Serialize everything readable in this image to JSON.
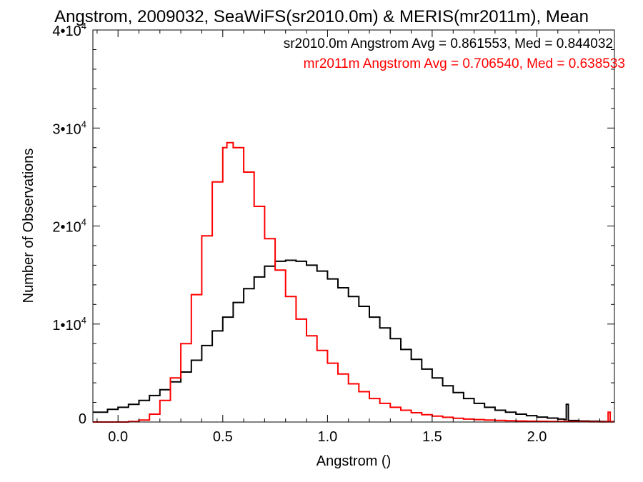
{
  "chart_data": {
    "type": "line",
    "title": "Angstrom, 2009032, SeaWiFS(sr2010.0m) & MERIS(mr2011m), Mean",
    "xlabel": "Angstrom ()",
    "ylabel": "Number of Observations",
    "xlim": [
      -0.12,
      2.37
    ],
    "ylim": [
      0,
      40000
    ],
    "x_ticks": [
      0.0,
      0.5,
      1.0,
      1.5,
      2.0
    ],
    "x_tick_labels": [
      "0.0",
      "0.5",
      "1.0",
      "1.5",
      "2.0"
    ],
    "y_ticks": [
      0,
      10000,
      20000,
      30000,
      40000
    ],
    "y_tick_labels": [
      {
        "mantissa": "0",
        "exponent": ""
      },
      {
        "mantissa": "1•10",
        "exponent": "4"
      },
      {
        "mantissa": "2•10",
        "exponent": "4"
      },
      {
        "mantissa": "3•10",
        "exponent": "4"
      },
      {
        "mantissa": "4•10",
        "exponent": "4"
      }
    ],
    "grid": false,
    "legend_location": "top-right",
    "series": [
      {
        "name": "sr2010.0m",
        "stats_label": "sr2010.0m Angstrom Avg = 0.861553, Med = 0.844032",
        "color": "#000000",
        "x": [
          -0.12,
          -0.05,
          0.0,
          0.05,
          0.1,
          0.15,
          0.2,
          0.25,
          0.3,
          0.35,
          0.4,
          0.45,
          0.5,
          0.55,
          0.6,
          0.65,
          0.7,
          0.75,
          0.8,
          0.85,
          0.9,
          0.95,
          1.0,
          1.05,
          1.1,
          1.15,
          1.2,
          1.25,
          1.3,
          1.35,
          1.4,
          1.45,
          1.5,
          1.55,
          1.6,
          1.65,
          1.7,
          1.75,
          1.8,
          1.85,
          1.9,
          1.95,
          2.0,
          2.05,
          2.1,
          2.13,
          2.14,
          2.15,
          2.2,
          2.25,
          2.3,
          2.33
        ],
        "y": [
          1000,
          1300,
          1500,
          1800,
          2200,
          2700,
          3300,
          4100,
          5100,
          6300,
          7800,
          9300,
          10700,
          12200,
          13600,
          14800,
          15900,
          16400,
          16500,
          16400,
          16000,
          15400,
          14600,
          13700,
          12800,
          11800,
          10700,
          9600,
          8500,
          7400,
          6400,
          5400,
          4500,
          3700,
          3000,
          2400,
          1900,
          1500,
          1200,
          1000,
          800,
          650,
          500,
          400,
          300,
          250,
          1800,
          150,
          100,
          80,
          50,
          40
        ]
      },
      {
        "name": "mr2011m",
        "stats_label": "mr2011m Angstrom Avg = 0.706540, Med = 0.638533",
        "color": "#ff0000",
        "x": [
          -0.12,
          0.0,
          0.05,
          0.1,
          0.15,
          0.2,
          0.25,
          0.3,
          0.35,
          0.4,
          0.45,
          0.5,
          0.52,
          0.55,
          0.6,
          0.65,
          0.7,
          0.75,
          0.8,
          0.85,
          0.9,
          0.95,
          1.0,
          1.05,
          1.1,
          1.15,
          1.2,
          1.25,
          1.3,
          1.35,
          1.4,
          1.45,
          1.5,
          1.55,
          1.6,
          1.65,
          1.7,
          1.75,
          1.8,
          1.85,
          1.9,
          1.95,
          2.0,
          2.05,
          2.1,
          2.15,
          2.2,
          2.25,
          2.3,
          2.33,
          2.34,
          2.35
        ],
        "y": [
          0,
          0,
          50,
          200,
          800,
          2200,
          4500,
          8000,
          13000,
          19000,
          24500,
          28000,
          28500,
          28000,
          25500,
          22000,
          18700,
          15500,
          12800,
          10500,
          8800,
          7300,
          6000,
          4900,
          3900,
          3100,
          2400,
          1900,
          1500,
          1200,
          950,
          750,
          600,
          480,
          380,
          300,
          250,
          200,
          160,
          130,
          100,
          80,
          70,
          60,
          50,
          40,
          35,
          30,
          25,
          20,
          1000,
          20
        ]
      }
    ]
  }
}
